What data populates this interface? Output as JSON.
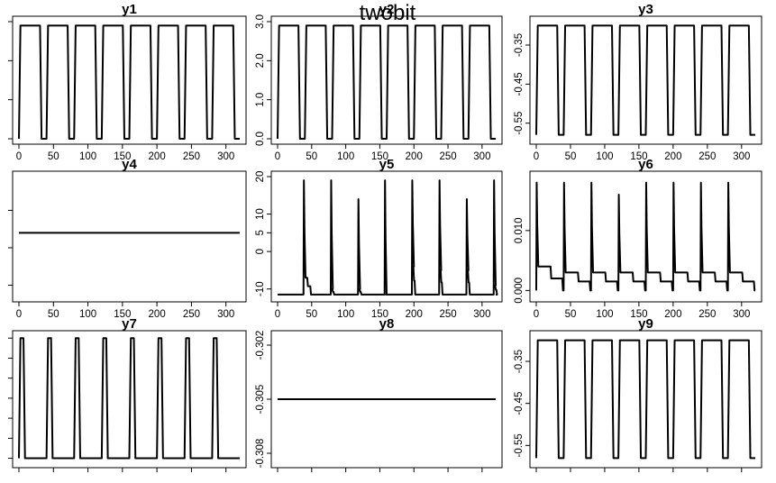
{
  "figure": {
    "title": "twobit"
  },
  "chart_data": [
    {
      "type": "line",
      "title": "y1",
      "xlim": [
        0,
        320
      ],
      "ylim": [
        0,
        3
      ],
      "x_ticks": [
        0,
        50,
        100,
        150,
        200,
        250,
        300
      ],
      "y_ticks": [
        0,
        1,
        2,
        3
      ],
      "y_ticks_labeled": false,
      "x_ticks_labeled": true,
      "signal": {
        "kind": "square",
        "low": 0,
        "high": 2.9,
        "period": 40,
        "duty": 0.82,
        "x_start": 0,
        "x_end": 320,
        "decay": 0
      }
    },
    {
      "type": "line",
      "title": "y2",
      "xlim": [
        0,
        320
      ],
      "ylim": [
        0,
        3
      ],
      "x_ticks": [
        0,
        50,
        100,
        150,
        200,
        250,
        300
      ],
      "y_ticks": [
        0,
        1,
        2,
        3
      ],
      "y_tick_labels": [
        "0.0",
        "1.0",
        "2.0",
        "3.0"
      ],
      "y_ticks_labeled": true,
      "x_ticks_labeled": true,
      "signal": {
        "kind": "square",
        "low": 0,
        "high": 2.9,
        "period": 40,
        "duty": 0.82,
        "x_start": 0,
        "x_end": 320,
        "decay": 0
      }
    },
    {
      "type": "line",
      "title": "y3",
      "xlim": [
        0,
        320
      ],
      "ylim": [
        -0.59,
        -0.29
      ],
      "x_ticks": [
        0,
        50,
        100,
        150,
        200,
        250,
        300
      ],
      "y_ticks": [
        -0.55,
        -0.45,
        -0.35
      ],
      "y_tick_labels": [
        "-0.55",
        "-0.45",
        "-0.35"
      ],
      "y_ticks_labeled": true,
      "x_ticks_labeled": true,
      "signal": {
        "kind": "square",
        "low": -0.58,
        "high": -0.3,
        "period": 40,
        "duty": 0.82,
        "x_start": 0,
        "x_end": 320,
        "decay": 0
      }
    },
    {
      "type": "line",
      "title": "y4",
      "xlim": [
        0,
        320
      ],
      "ylim": [
        -13,
        19
      ],
      "x_ticks": [
        0,
        50,
        100,
        150,
        200,
        250,
        300
      ],
      "y_ticks": [
        -10,
        0,
        10
      ],
      "y_ticks_labeled": false,
      "x_ticks_labeled": true,
      "signal": {
        "kind": "flat",
        "value": 4,
        "x_start": 0,
        "x_end": 320
      }
    },
    {
      "type": "line",
      "title": "y5",
      "xlim": [
        0,
        320
      ],
      "ylim": [
        -12,
        20
      ],
      "x_ticks": [
        0,
        50,
        100,
        150,
        200,
        250,
        300
      ],
      "y_ticks": [
        -10,
        0,
        5,
        10,
        20
      ],
      "y_tick_labels": [
        "-10",
        "0",
        "5",
        "10",
        "20"
      ],
      "y_ticks_labeled": true,
      "x_ticks_labeled": true,
      "signal": {
        "kind": "spikes",
        "x_start": 0,
        "x_end": 320,
        "baseline": -11.5,
        "rise": 6,
        "spikes": [
          {
            "x": 38,
            "peak": 19,
            "plateau": -7,
            "next": 50
          },
          {
            "x": 78,
            "peak": 19,
            "plateau": -10,
            "next": 82
          },
          {
            "x": 118,
            "peak": 14,
            "plateau": -10,
            "next": 122
          },
          {
            "x": 157,
            "peak": 19,
            "plateau": -11.5,
            "next": 162
          },
          {
            "x": 197,
            "peak": 19,
            "plateau": -4,
            "next": 202
          },
          {
            "x": 237,
            "peak": 19,
            "plateau": -5,
            "next": 242
          },
          {
            "x": 277,
            "peak": 14,
            "plateau": -5,
            "next": 282
          },
          {
            "x": 317,
            "peak": 19,
            "plateau": -9,
            "next": 320
          }
        ]
      }
    },
    {
      "type": "line",
      "title": "y6",
      "xlim": [
        0,
        320
      ],
      "ylim": [
        -0.001,
        0.019
      ],
      "x_ticks": [
        0,
        50,
        100,
        150,
        200,
        250,
        300
      ],
      "y_ticks": [
        0,
        0.01
      ],
      "y_tick_labels": [
        "0.000",
        "0.010"
      ],
      "y_ticks_labeled": true,
      "x_ticks_labeled": true,
      "signal": {
        "kind": "spikes",
        "x_start": 0,
        "x_end": 320,
        "baseline": 0,
        "rise": 6,
        "spikes": [
          {
            "x": 0,
            "peak": 0.018,
            "plateau": 0.004,
            "next": 40
          },
          {
            "x": 40,
            "peak": 0.018,
            "plateau": 0.003,
            "next": 80
          },
          {
            "x": 80,
            "peak": 0.018,
            "plateau": 0.003,
            "next": 120
          },
          {
            "x": 120,
            "peak": 0.016,
            "plateau": 0.003,
            "next": 160
          },
          {
            "x": 160,
            "peak": 0.018,
            "plateau": 0.003,
            "next": 200
          },
          {
            "x": 200,
            "peak": 0.018,
            "plateau": 0.003,
            "next": 240
          },
          {
            "x": 240,
            "peak": 0.018,
            "plateau": 0.003,
            "next": 280
          },
          {
            "x": 280,
            "peak": 0.018,
            "plateau": 0.003,
            "next": 320
          }
        ]
      }
    },
    {
      "type": "line",
      "title": "y7",
      "xlim": [
        0,
        320
      ],
      "ylim": [
        -0.3082,
        -0.3019
      ],
      "x_ticks": [
        0,
        50,
        100,
        150,
        200,
        250,
        300
      ],
      "y_ticks": [
        -0.308,
        -0.307,
        -0.306,
        -0.305,
        -0.304,
        -0.303,
        -0.302
      ],
      "y_ticks_labeled": false,
      "x_ticks_labeled": false,
      "signal": {
        "kind": "square",
        "low": -0.308,
        "high": -0.302,
        "period": 40,
        "duty": 0.22,
        "x_start": 0,
        "x_end": 320,
        "decay": 0
      }
    },
    {
      "type": "line",
      "title": "y8",
      "xlim": [
        0,
        320
      ],
      "ylim": [
        -0.3085,
        -0.3015
      ],
      "x_ticks": [
        0,
        50,
        100,
        150,
        200,
        250,
        300
      ],
      "y_ticks": [
        -0.308,
        -0.305,
        -0.302
      ],
      "y_tick_labels": [
        "-0.308",
        "-0.305",
        "-0.302"
      ],
      "y_ticks_labeled": true,
      "x_ticks_labeled": false,
      "signal": {
        "kind": "flat",
        "value": -0.305,
        "x_start": 0,
        "x_end": 320
      }
    },
    {
      "type": "line",
      "title": "y9",
      "xlim": [
        0,
        320
      ],
      "ylim": [
        -0.59,
        -0.29
      ],
      "x_ticks": [
        0,
        50,
        100,
        150,
        200,
        250,
        300
      ],
      "y_ticks": [
        -0.55,
        -0.45,
        -0.35
      ],
      "y_tick_labels": [
        "-0.55",
        "-0.45",
        "-0.35"
      ],
      "y_ticks_labeled": true,
      "x_ticks_labeled": false,
      "signal": {
        "kind": "square",
        "low": -0.58,
        "high": -0.3,
        "period": 40,
        "duty": 0.82,
        "x_start": 0,
        "x_end": 320,
        "decay": 0
      }
    }
  ]
}
